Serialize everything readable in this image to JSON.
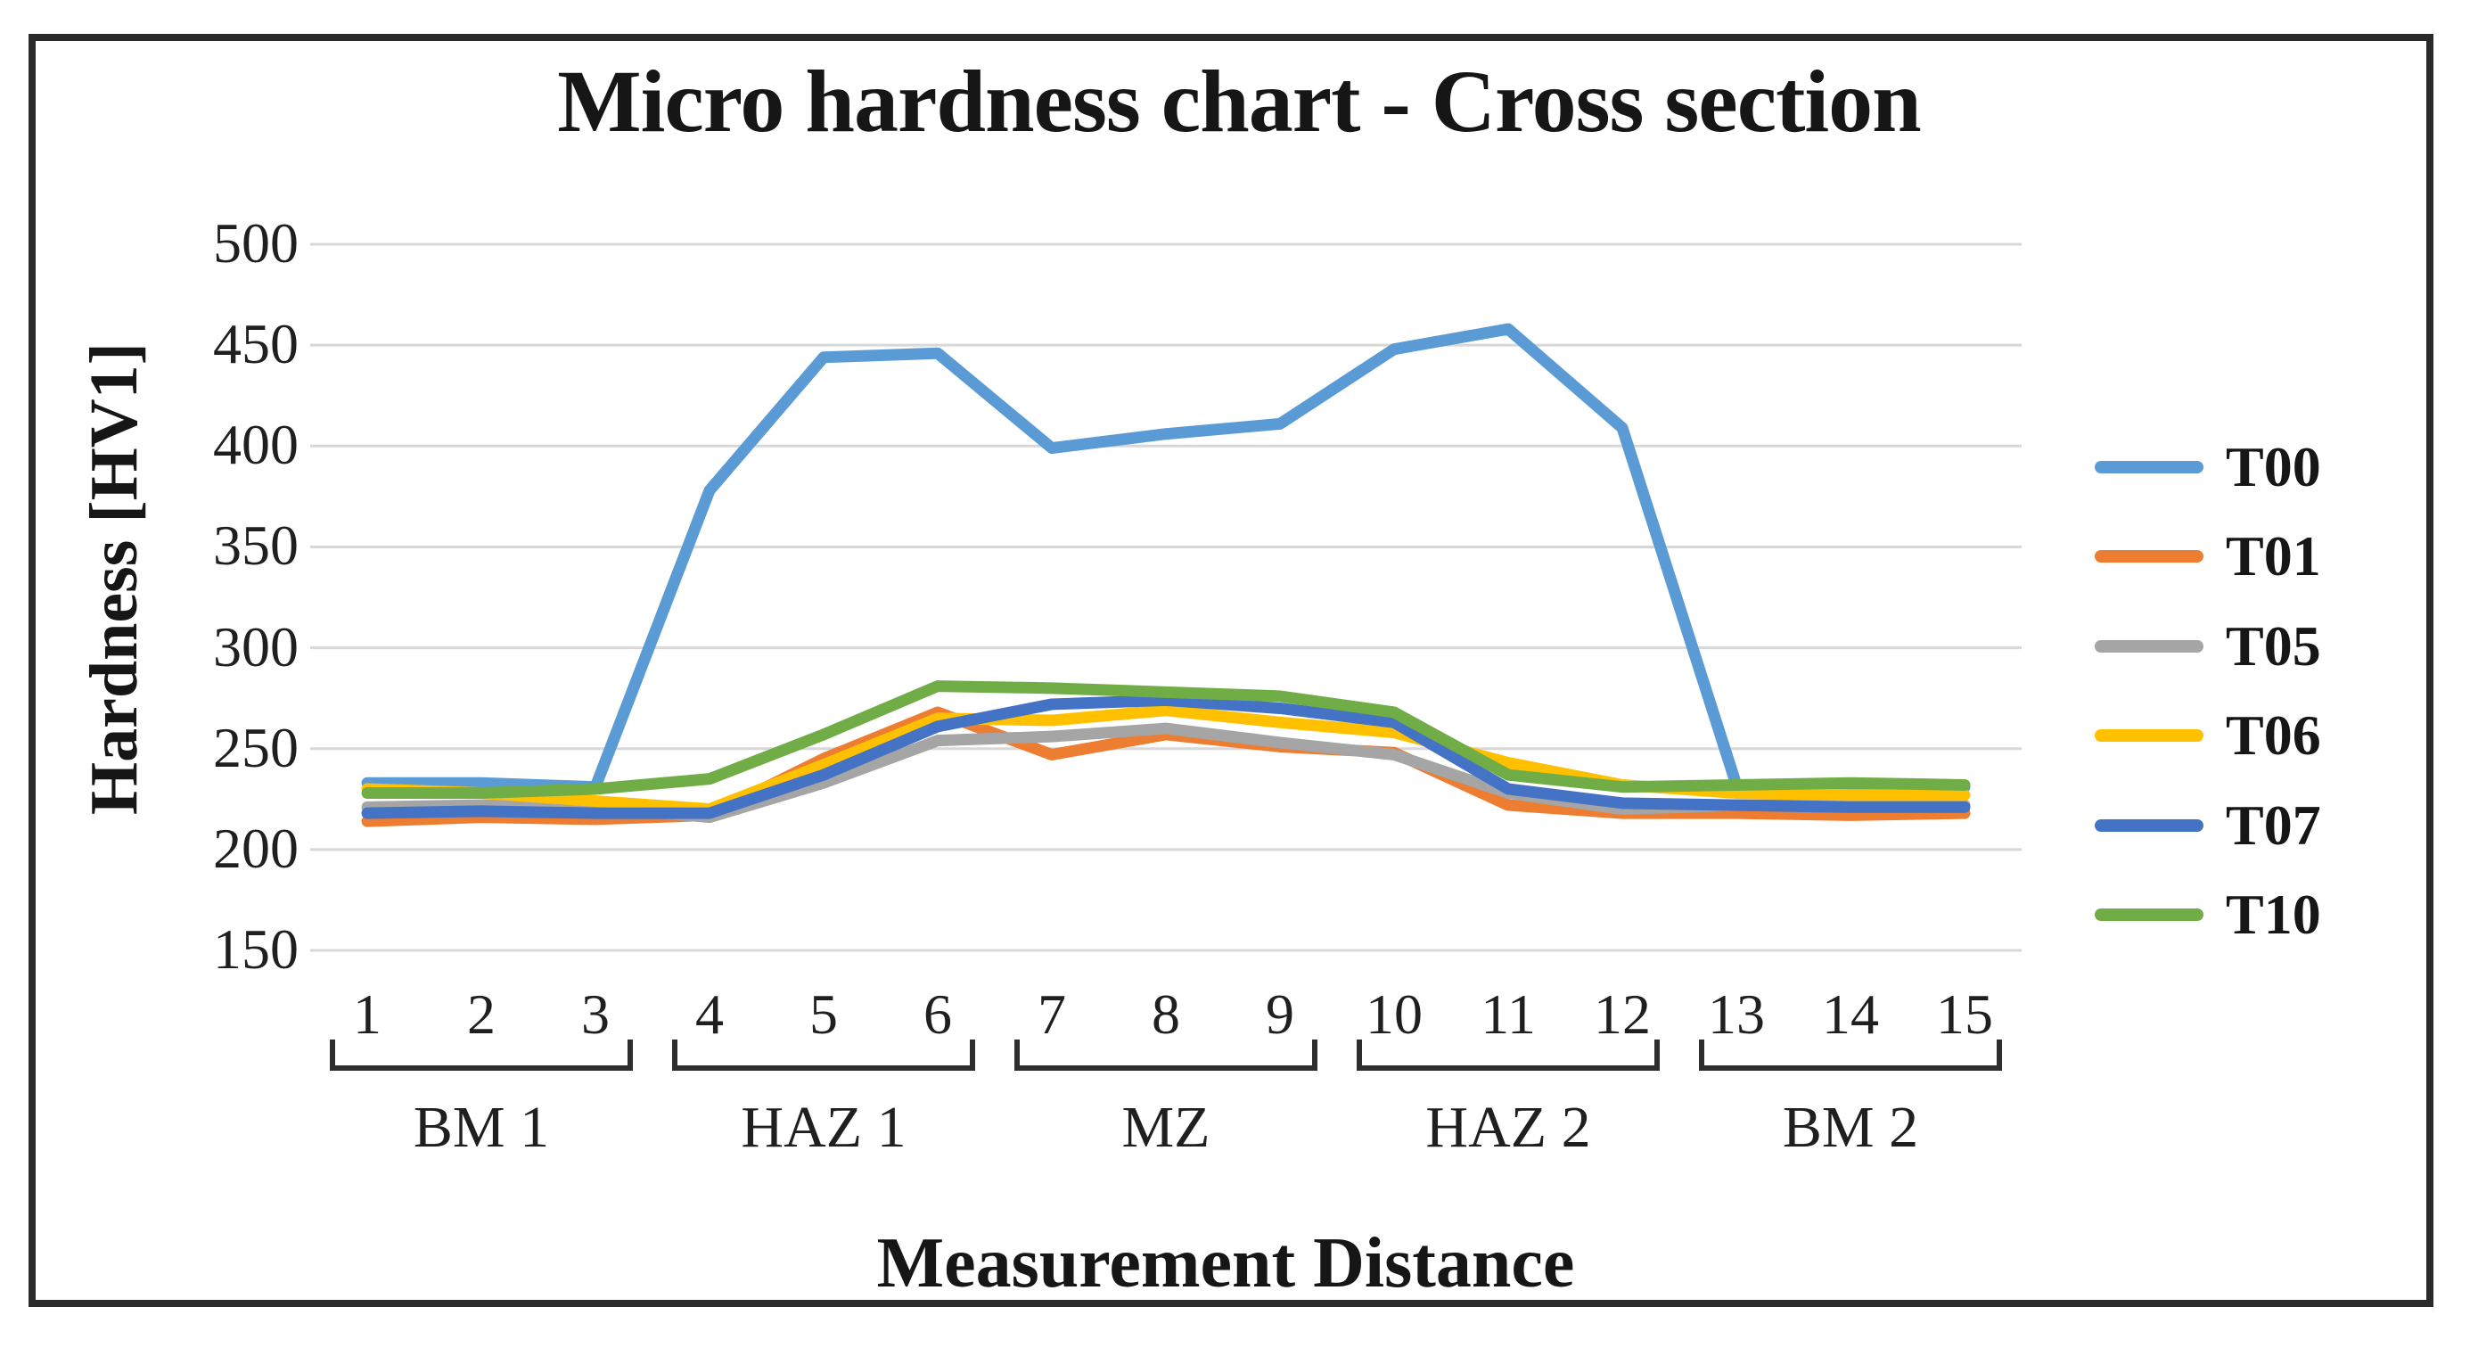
{
  "figure": {
    "title": "Micro hardness chart - Cross section",
    "y_axis_title": "Hardness [HV1]",
    "x_axis_title": "Measurement Distance"
  },
  "chart_data": {
    "type": "line",
    "title": "Micro hardness chart - Cross section",
    "xlabel": "Measurement Distance",
    "ylabel": "Hardness [HV1]",
    "x": [
      1,
      2,
      3,
      4,
      5,
      6,
      7,
      8,
      9,
      10,
      11,
      12,
      13,
      14,
      15
    ],
    "y_ticks": [
      150,
      200,
      250,
      300,
      350,
      400,
      450,
      500
    ],
    "ylim": [
      150,
      500
    ],
    "grid": "horizontal-only",
    "grid_color": "#d8d8d8",
    "legend_position": "right",
    "x_groups": [
      {
        "label": "BM 1",
        "from": 1,
        "to": 3
      },
      {
        "label": "HAZ 1",
        "from": 4,
        "to": 6
      },
      {
        "label": "MZ",
        "from": 7,
        "to": 9
      },
      {
        "label": "HAZ 2",
        "from": 10,
        "to": 12
      },
      {
        "label": "BM 2",
        "from": 13,
        "to": 15
      }
    ],
    "series": [
      {
        "name": "T00",
        "color": "#5B9BD5",
        "values": [
          233,
          233,
          231,
          378,
          444,
          446,
          399,
          406,
          411,
          448,
          458,
          409,
          232,
          230,
          231
        ]
      },
      {
        "name": "T01",
        "color": "#ED7D31",
        "values": [
          214,
          216,
          215,
          217,
          245,
          268,
          247,
          257,
          251,
          248,
          222,
          218,
          218,
          217,
          218
        ]
      },
      {
        "name": "T05",
        "color": "#A5A5A5",
        "values": [
          221,
          222,
          221,
          216,
          233,
          254,
          256,
          260,
          253,
          247,
          228,
          220,
          222,
          222,
          222
        ]
      },
      {
        "name": "T06",
        "color": "#FFC000",
        "values": [
          230,
          228,
          224,
          220,
          242,
          265,
          264,
          269,
          263,
          258,
          243,
          232,
          228,
          227,
          227
        ]
      },
      {
        "name": "T07",
        "color": "#4472C4",
        "values": [
          218,
          219,
          218,
          218,
          237,
          261,
          272,
          274,
          270,
          263,
          230,
          223,
          222,
          221,
          221
        ]
      },
      {
        "name": "T10",
        "color": "#70AD47",
        "values": [
          228,
          228,
          230,
          235,
          257,
          281,
          280,
          278,
          276,
          268,
          237,
          231,
          232,
          233,
          232
        ]
      }
    ]
  }
}
